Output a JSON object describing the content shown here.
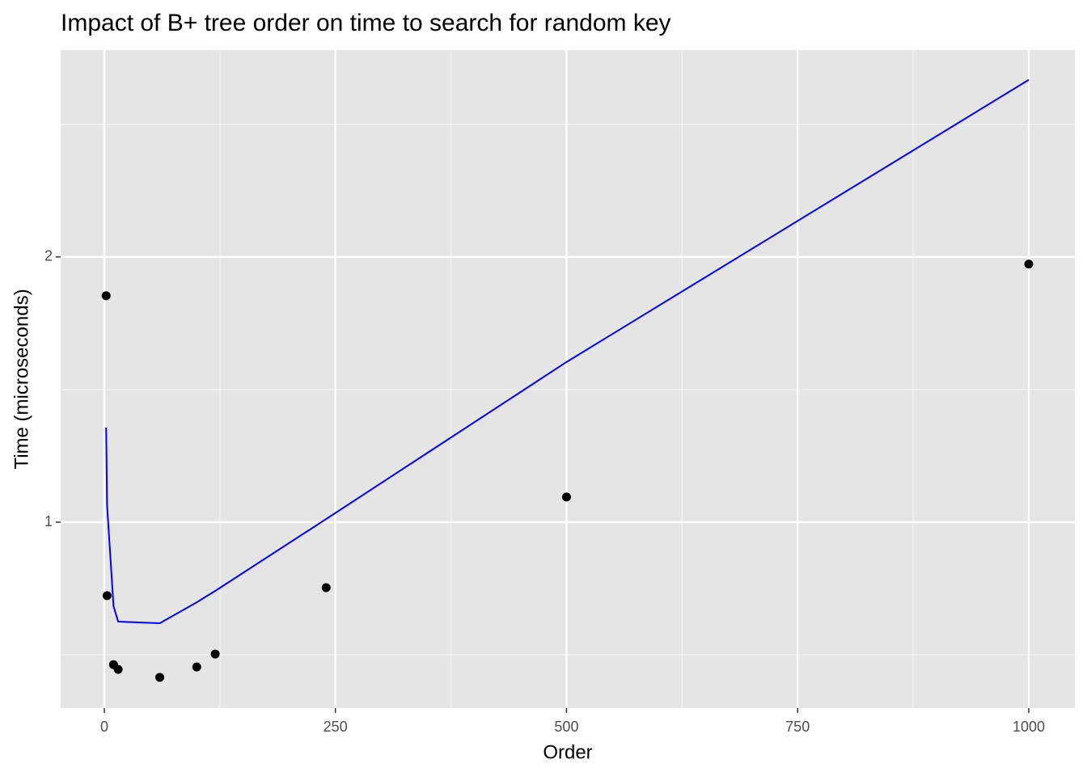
{
  "chart_data": {
    "type": "scatter",
    "title": "Impact of B+ tree order on time to search for random key",
    "x_label": "Order",
    "y_label": "Time (microseconds)",
    "xlim": [
      -47.2,
      1049.9
    ],
    "ylim": [
      0.299,
      2.78
    ],
    "xticks": [
      0,
      250,
      500,
      750,
      1000
    ],
    "yticks": [
      1,
      2
    ],
    "x_minor_grid": [
      125,
      375,
      625,
      875
    ],
    "y_minor_grid": [
      0.5,
      1.5,
      2.5
    ],
    "grid": true,
    "series": [
      {
        "type": "scatter",
        "color": "#000000",
        "x": [
          2,
          3,
          10,
          15,
          60,
          100,
          120,
          240,
          500,
          1000
        ],
        "values": [
          1.854,
          0.723,
          0.463,
          0.445,
          0.415,
          0.454,
          0.503,
          0.753,
          1.095,
          1.973
        ]
      },
      {
        "type": "line",
        "color": "#0000ff",
        "x": [
          2,
          3,
          10,
          15,
          60,
          100,
          120,
          240,
          500,
          1000
        ],
        "values": [
          1.357,
          1.064,
          0.683,
          0.625,
          0.619,
          0.698,
          0.741,
          1.012,
          1.604,
          2.668
        ]
      }
    ]
  }
}
